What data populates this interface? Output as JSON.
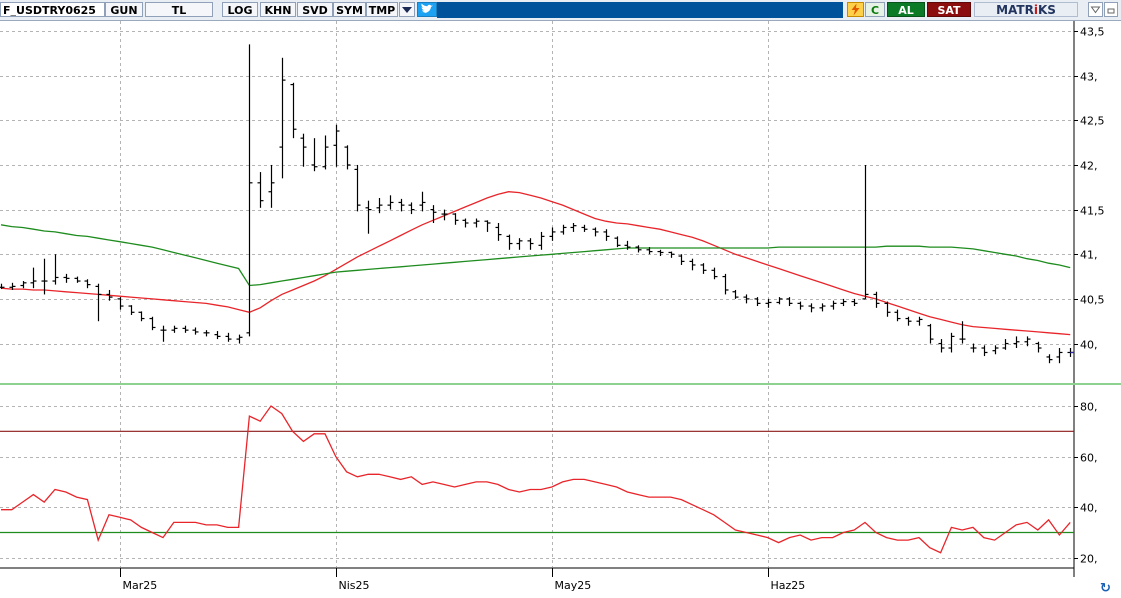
{
  "toolbar": {
    "symbol": "F_USDTRY0625",
    "period": "GUN",
    "currency": "TL",
    "buttons": [
      "LOG",
      "KHN",
      "SVD",
      "SYM",
      "TMP"
    ],
    "c_label": "C",
    "buy_label": "AL",
    "sell_label": "SAT",
    "brand_prefix": "MATR",
    "brand_dot": "i",
    "brand_suffix": "KS",
    "icons": [
      "dropdown-arrow-icon",
      "twitter-bird-icon",
      "lightning-icon",
      "triangle-down-icon",
      "minimize-icon",
      "refresh-icon"
    ]
  },
  "colors": {
    "price_bars": "#000000",
    "red_line": "#e8252a",
    "green_line": "#1e8c1e",
    "last_price": "#2a2aa8",
    "upper_band": "#8b1a1a",
    "lower_band": "#1e8c1e",
    "panel_separator": "#8fd18f"
  },
  "chart_data": [
    {
      "type": "ohlc",
      "title": "",
      "xlabel": "",
      "ylabel": "",
      "x_ticks": [
        {
          "label": "Mar25",
          "index": 11
        },
        {
          "label": "Nis25",
          "index": 31
        },
        {
          "label": "May25",
          "index": 51
        },
        {
          "label": "Haz25",
          "index": 71
        }
      ],
      "y_ticks": [
        "43,5",
        "43,",
        "42,5",
        "42,",
        "41,5",
        "41,",
        "40,5",
        "40,"
      ],
      "ylim": [
        39.65,
        43.5
      ],
      "grid": true,
      "bars": [
        [
          40.63,
          40.67,
          40.61,
          40.63
        ],
        [
          40.63,
          40.68,
          40.6,
          40.64
        ],
        [
          40.65,
          40.7,
          40.62,
          40.68
        ],
        [
          40.68,
          40.85,
          40.62,
          40.7
        ],
        [
          40.7,
          40.95,
          40.55,
          40.7
        ],
        [
          40.7,
          41.0,
          40.66,
          40.74
        ],
        [
          40.74,
          40.78,
          40.68,
          40.73
        ],
        [
          40.73,
          40.75,
          40.68,
          40.7
        ],
        [
          40.7,
          40.72,
          40.62,
          40.66
        ],
        [
          40.64,
          40.67,
          40.25,
          40.55
        ],
        [
          40.55,
          40.6,
          40.48,
          40.52
        ],
        [
          40.5,
          40.52,
          40.38,
          40.42
        ],
        [
          40.42,
          40.43,
          40.32,
          40.35
        ],
        [
          40.35,
          40.36,
          40.25,
          40.28
        ],
        [
          40.28,
          40.3,
          40.15,
          40.18
        ],
        [
          40.15,
          40.2,
          40.02,
          40.15
        ],
        [
          40.15,
          40.2,
          40.12,
          40.17
        ],
        [
          40.17,
          40.2,
          40.12,
          40.15
        ],
        [
          40.15,
          40.18,
          40.1,
          40.13
        ],
        [
          40.12,
          40.15,
          40.08,
          40.12
        ],
        [
          40.1,
          40.14,
          40.05,
          40.08
        ],
        [
          40.08,
          40.12,
          40.02,
          40.05
        ],
        [
          40.05,
          40.1,
          40.0,
          40.07
        ],
        [
          40.12,
          43.35,
          40.08,
          41.8
        ],
        [
          41.8,
          41.92,
          41.52,
          41.6
        ],
        [
          41.7,
          42.0,
          41.52,
          41.8
        ],
        [
          42.2,
          43.2,
          41.85,
          42.95
        ],
        [
          42.9,
          42.92,
          42.3,
          42.4
        ],
        [
          42.3,
          42.35,
          41.98,
          42.2
        ],
        [
          42.0,
          42.3,
          41.93,
          41.98
        ],
        [
          41.98,
          42.33,
          41.95,
          42.2
        ],
        [
          42.22,
          42.45,
          41.98,
          42.38
        ],
        [
          42.2,
          42.22,
          41.95,
          42.0
        ],
        [
          41.95,
          42.0,
          41.48,
          41.55
        ],
        [
          41.52,
          41.6,
          41.23,
          41.5
        ],
        [
          41.52,
          41.63,
          41.46,
          41.55
        ],
        [
          41.55,
          41.66,
          41.5,
          41.58
        ],
        [
          41.58,
          41.62,
          41.48,
          41.55
        ],
        [
          41.55,
          41.58,
          41.45,
          41.5
        ],
        [
          41.55,
          41.7,
          41.48,
          41.58
        ],
        [
          41.5,
          41.55,
          41.35,
          41.47
        ],
        [
          41.45,
          41.5,
          41.38,
          41.45
        ],
        [
          41.45,
          41.46,
          41.33,
          41.38
        ],
        [
          41.38,
          41.4,
          41.3,
          41.35
        ],
        [
          41.35,
          41.4,
          41.3,
          41.37
        ],
        [
          41.37,
          41.38,
          41.25,
          41.35
        ],
        [
          41.3,
          41.35,
          41.15,
          41.22
        ],
        [
          41.2,
          41.22,
          41.05,
          41.12
        ],
        [
          41.12,
          41.18,
          41.05,
          41.15
        ],
        [
          41.15,
          41.18,
          41.05,
          41.12
        ],
        [
          41.1,
          41.25,
          41.05,
          41.2
        ],
        [
          41.2,
          41.3,
          41.15,
          41.25
        ],
        [
          41.25,
          41.33,
          41.22,
          41.3
        ],
        [
          41.3,
          41.35,
          41.25,
          41.32
        ],
        [
          41.3,
          41.33,
          41.25,
          41.28
        ],
        [
          41.28,
          41.3,
          41.2,
          41.25
        ],
        [
          41.25,
          41.28,
          41.15,
          41.2
        ],
        [
          41.18,
          41.2,
          41.08,
          41.1
        ],
        [
          41.1,
          41.15,
          41.05,
          41.08
        ],
        [
          41.08,
          41.1,
          41.02,
          41.05
        ],
        [
          41.05,
          41.08,
          41.0,
          41.03
        ],
        [
          41.03,
          41.05,
          40.98,
          41.02
        ],
        [
          41.02,
          41.03,
          40.96,
          41.0
        ],
        [
          40.98,
          41.0,
          40.88,
          40.92
        ],
        [
          40.92,
          40.95,
          40.82,
          40.88
        ],
        [
          40.88,
          40.9,
          40.78,
          40.82
        ],
        [
          40.82,
          40.85,
          40.72,
          40.75
        ],
        [
          40.75,
          40.78,
          40.55,
          40.6
        ],
        [
          40.58,
          40.6,
          40.5,
          40.52
        ],
        [
          40.52,
          40.55,
          40.45,
          40.5
        ],
        [
          40.5,
          40.52,
          40.42,
          40.45
        ],
        [
          40.45,
          40.5,
          40.4,
          40.46
        ],
        [
          40.46,
          40.52,
          40.44,
          40.5
        ],
        [
          40.5,
          40.52,
          40.42,
          40.45
        ],
        [
          40.45,
          40.47,
          40.38,
          40.42
        ],
        [
          40.42,
          40.45,
          40.35,
          40.4
        ],
        [
          40.4,
          40.45,
          40.36,
          40.42
        ],
        [
          40.42,
          40.48,
          40.38,
          40.45
        ],
        [
          40.45,
          40.5,
          40.42,
          40.47
        ],
        [
          40.47,
          40.5,
          40.42,
          40.45
        ],
        [
          40.5,
          42.0,
          40.5,
          40.55
        ],
        [
          40.55,
          40.58,
          40.4,
          40.45
        ],
        [
          40.45,
          40.47,
          40.3,
          40.35
        ],
        [
          40.35,
          40.38,
          40.25,
          40.28
        ],
        [
          40.28,
          40.3,
          40.2,
          40.25
        ],
        [
          40.25,
          40.3,
          40.2,
          40.27
        ],
        [
          40.2,
          40.22,
          40.0,
          40.05
        ],
        [
          40.0,
          40.05,
          39.9,
          39.95
        ],
        [
          39.95,
          40.12,
          39.9,
          40.08
        ],
        [
          40.05,
          40.25,
          40.0,
          40.05
        ],
        [
          39.95,
          40.0,
          39.9,
          39.95
        ],
        [
          39.95,
          39.98,
          39.86,
          39.9
        ],
        [
          39.92,
          39.98,
          39.88,
          39.95
        ],
        [
          39.95,
          40.05,
          39.93,
          40.0
        ],
        [
          40.0,
          40.08,
          39.95,
          40.02
        ],
        [
          40.02,
          40.08,
          39.97,
          40.05
        ],
        [
          40.0,
          40.02,
          39.9,
          39.95
        ],
        [
          39.85,
          39.88,
          39.78,
          39.82
        ],
        [
          39.85,
          39.95,
          39.78,
          39.9
        ],
        [
          39.9,
          39.95,
          39.85,
          39.9
        ]
      ],
      "last_price": 39.9,
      "lines": [
        {
          "role": "red",
          "values": [
            40.62,
            40.61,
            40.61,
            40.6,
            40.6,
            40.59,
            40.58,
            40.57,
            40.56,
            40.55,
            40.54,
            40.53,
            40.52,
            40.51,
            40.5,
            40.49,
            40.48,
            40.47,
            40.46,
            40.45,
            40.43,
            40.41,
            40.38,
            40.35,
            40.4,
            40.48,
            40.55,
            40.6,
            40.65,
            40.7,
            40.76,
            40.83,
            40.9,
            40.97,
            41.03,
            41.09,
            41.15,
            41.21,
            41.27,
            41.33,
            41.38,
            41.43,
            41.48,
            41.53,
            41.58,
            41.63,
            41.67,
            41.7,
            41.69,
            41.66,
            41.63,
            41.59,
            41.55,
            41.5,
            41.45,
            41.4,
            41.37,
            41.35,
            41.34,
            41.32,
            41.3,
            41.28,
            41.25,
            41.22,
            41.19,
            41.15,
            41.1,
            41.05,
            41.0,
            40.96,
            40.92,
            40.88,
            40.84,
            40.8,
            40.76,
            40.72,
            40.68,
            40.64,
            40.6,
            40.56,
            40.53,
            40.5,
            40.46,
            40.42,
            40.38,
            40.34,
            40.3,
            40.27,
            40.24,
            40.21,
            40.19,
            40.18,
            40.17,
            40.16,
            40.15,
            40.14,
            40.13,
            40.12,
            40.11,
            40.1
          ]
        },
        {
          "role": "green",
          "values": [
            41.33,
            41.31,
            41.3,
            41.28,
            41.26,
            41.25,
            41.23,
            41.21,
            41.2,
            41.18,
            41.16,
            41.14,
            41.12,
            41.1,
            41.08,
            41.05,
            41.02,
            40.99,
            40.96,
            40.93,
            40.9,
            40.87,
            40.84,
            40.65,
            40.66,
            40.68,
            40.7,
            40.72,
            40.74,
            40.76,
            40.78,
            40.8,
            40.81,
            40.82,
            40.83,
            40.84,
            40.85,
            40.86,
            40.87,
            40.88,
            40.89,
            40.9,
            40.91,
            40.92,
            40.93,
            40.94,
            40.95,
            40.96,
            40.97,
            40.98,
            40.99,
            41.0,
            41.01,
            41.02,
            41.03,
            41.04,
            41.05,
            41.06,
            41.07,
            41.07,
            41.07,
            41.07,
            41.07,
            41.07,
            41.07,
            41.07,
            41.07,
            41.07,
            41.07,
            41.07,
            41.07,
            41.07,
            41.08,
            41.08,
            41.08,
            41.08,
            41.08,
            41.08,
            41.08,
            41.08,
            41.08,
            41.08,
            41.09,
            41.09,
            41.09,
            41.09,
            41.08,
            41.08,
            41.08,
            41.07,
            41.06,
            41.04,
            41.02,
            41.0,
            40.98,
            40.95,
            40.93,
            40.9,
            40.88,
            40.85
          ]
        }
      ]
    },
    {
      "type": "line",
      "title": "",
      "xlabel": "",
      "ylabel": "",
      "y_ticks": [
        "80,",
        "60,",
        "40,",
        "20,"
      ],
      "ylim": [
        19,
        86
      ],
      "grid": true,
      "upper_level": 70,
      "lower_level": 30,
      "series": [
        {
          "values": [
            39,
            39,
            42,
            45,
            42,
            47,
            46,
            44,
            43,
            27,
            37,
            36,
            35,
            32,
            30,
            28,
            34,
            34,
            34,
            33,
            33,
            32,
            32,
            76,
            74,
            80,
            77,
            70,
            66,
            69,
            69,
            60,
            54,
            52,
            53,
            53,
            52,
            51,
            52,
            49,
            50,
            49,
            48,
            49,
            50,
            50,
            49,
            47,
            46,
            47,
            47,
            48,
            50,
            51,
            51,
            50,
            49,
            48,
            46,
            45,
            44,
            44,
            44,
            43,
            41,
            39,
            37,
            34,
            31,
            30,
            29,
            28,
            26,
            28,
            29,
            27,
            28,
            28,
            30,
            31,
            34,
            30,
            28,
            27,
            27,
            28,
            24,
            22,
            32,
            31,
            32,
            28,
            27,
            30,
            33,
            34,
            31,
            35,
            29,
            34
          ]
        }
      ]
    }
  ]
}
